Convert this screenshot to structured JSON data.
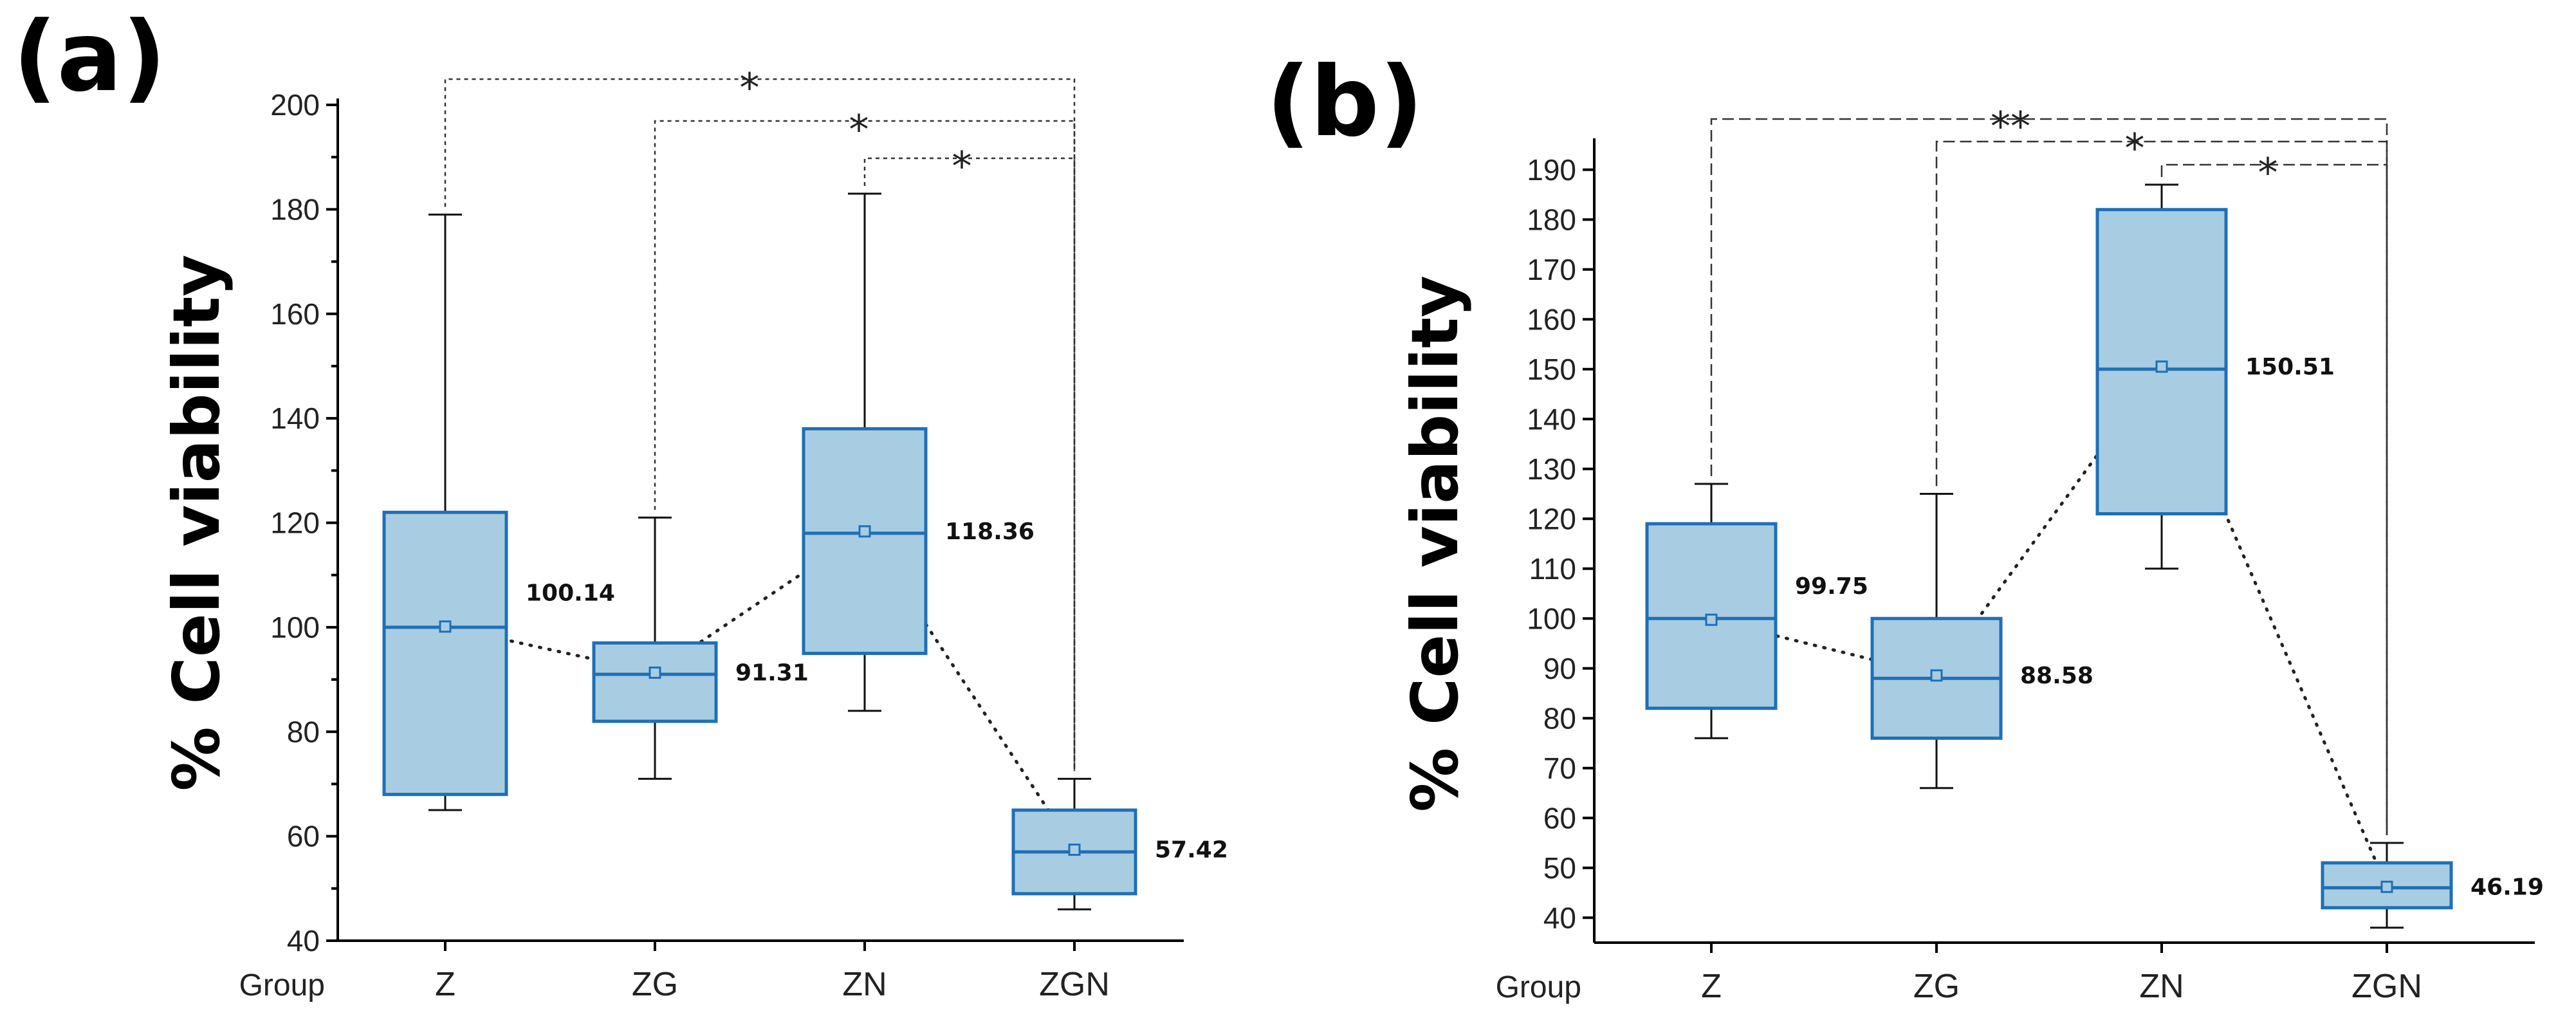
{
  "chart_data": [
    {
      "type": "box",
      "panel_label": "(a)",
      "ylabel": "% Cell viability",
      "xgroup_label": "Group",
      "categories": [
        "Z",
        "ZG",
        "ZN",
        "ZGN"
      ],
      "ylim": [
        40,
        200
      ],
      "yticks": [
        40,
        60,
        80,
        100,
        120,
        140,
        160,
        180,
        200
      ],
      "boxes": [
        {
          "min": 65,
          "q1": 68,
          "median": 100,
          "q3": 122,
          "max": 179,
          "mean": 100.14,
          "mean_label": "100.14"
        },
        {
          "min": 71,
          "q1": 82,
          "median": 91,
          "q3": 97,
          "max": 121,
          "mean": 91.31,
          "mean_label": "91.31"
        },
        {
          "min": 84,
          "q1": 95,
          "median": 118,
          "q3": 138,
          "max": 183,
          "mean": 118.36,
          "mean_label": "118.36"
        },
        {
          "min": 46,
          "q1": 49,
          "median": 57,
          "q3": 65,
          "max": 71,
          "mean": 57.42,
          "mean_label": "57.42"
        }
      ],
      "significance": [
        {
          "from": "Z",
          "to": "ZGN",
          "label": "*"
        },
        {
          "from": "ZG",
          "to": "ZGN",
          "label": "*"
        },
        {
          "from": "ZN",
          "to": "ZGN",
          "label": "*"
        }
      ],
      "mean_trend_line": true
    },
    {
      "type": "box",
      "panel_label": "(b)",
      "ylabel": "% Cell viability",
      "xgroup_label": "Group",
      "categories": [
        "Z",
        "ZG",
        "ZN",
        "ZGN"
      ],
      "ylim": [
        35,
        195
      ],
      "yticks": [
        40,
        50,
        60,
        70,
        80,
        90,
        100,
        110,
        120,
        130,
        140,
        150,
        160,
        170,
        180,
        190
      ],
      "boxes": [
        {
          "min": 76,
          "q1": 82,
          "median": 100,
          "q3": 119,
          "max": 127,
          "mean": 99.75,
          "mean_label": "99.75"
        },
        {
          "min": 66,
          "q1": 76,
          "median": 88,
          "q3": 100,
          "max": 125,
          "mean": 88.58,
          "mean_label": "88.58"
        },
        {
          "min": 110,
          "q1": 121,
          "median": 150,
          "q3": 182,
          "max": 187,
          "mean": 150.51,
          "mean_label": "150.51"
        },
        {
          "min": 38,
          "q1": 42,
          "median": 46,
          "q3": 51,
          "max": 55,
          "mean": 46.19,
          "mean_label": "46.19"
        }
      ],
      "significance": [
        {
          "from": "Z",
          "to": "ZGN",
          "label": "**"
        },
        {
          "from": "ZG",
          "to": "ZGN",
          "label": "*"
        },
        {
          "from": "ZN",
          "to": "ZGN",
          "label": "*"
        }
      ],
      "mean_trend_line": true
    }
  ]
}
